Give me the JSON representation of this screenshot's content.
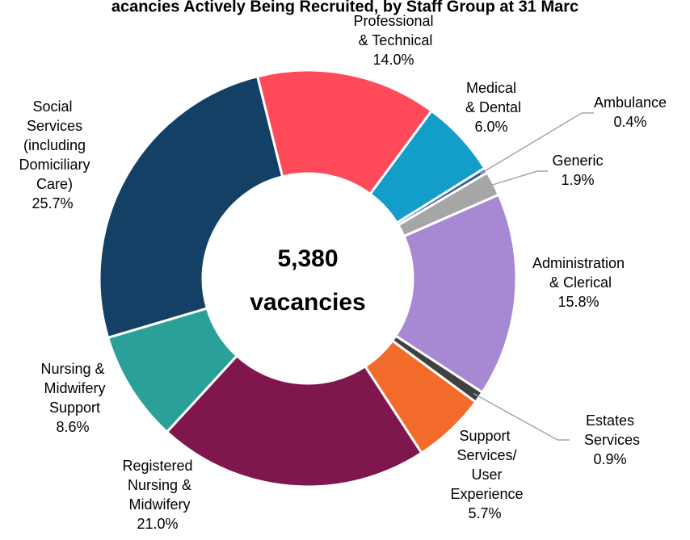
{
  "chart_data": {
    "type": "donut",
    "title": "acancies Actively Being Recruited, by Staff Group at 31 Marc",
    "categories": [
      "Professional & Technical",
      "Medical & Dental",
      "Ambulance",
      "Generic",
      "Administration & Clerical",
      "Estates Services",
      "Support Services/ User Experience",
      "Registered Nursing & Midwifery",
      "Nursing & Midwifery Support",
      "Social Services (including Domiciliary Care)"
    ],
    "values": [
      14.0,
      6.0,
      0.4,
      1.9,
      15.8,
      0.9,
      5.7,
      21.0,
      8.6,
      25.7
    ],
    "value_labels": [
      "14.0%",
      "6.0%",
      "0.4%",
      "1.9%",
      "15.8%",
      "0.9%",
      "5.7%",
      "21.0%",
      "8.6%",
      "25.7%"
    ],
    "colors": [
      "#ff4a5a",
      "#139ec9",
      "#2f5f8f",
      "#a6a6a6",
      "#a689d2",
      "#404040",
      "#f26b2a",
      "#7f174e",
      "#2aa198",
      "#154066"
    ],
    "total": {
      "value": 5380,
      "label": "5,380"
    },
    "total_caption": "vacancies"
  }
}
